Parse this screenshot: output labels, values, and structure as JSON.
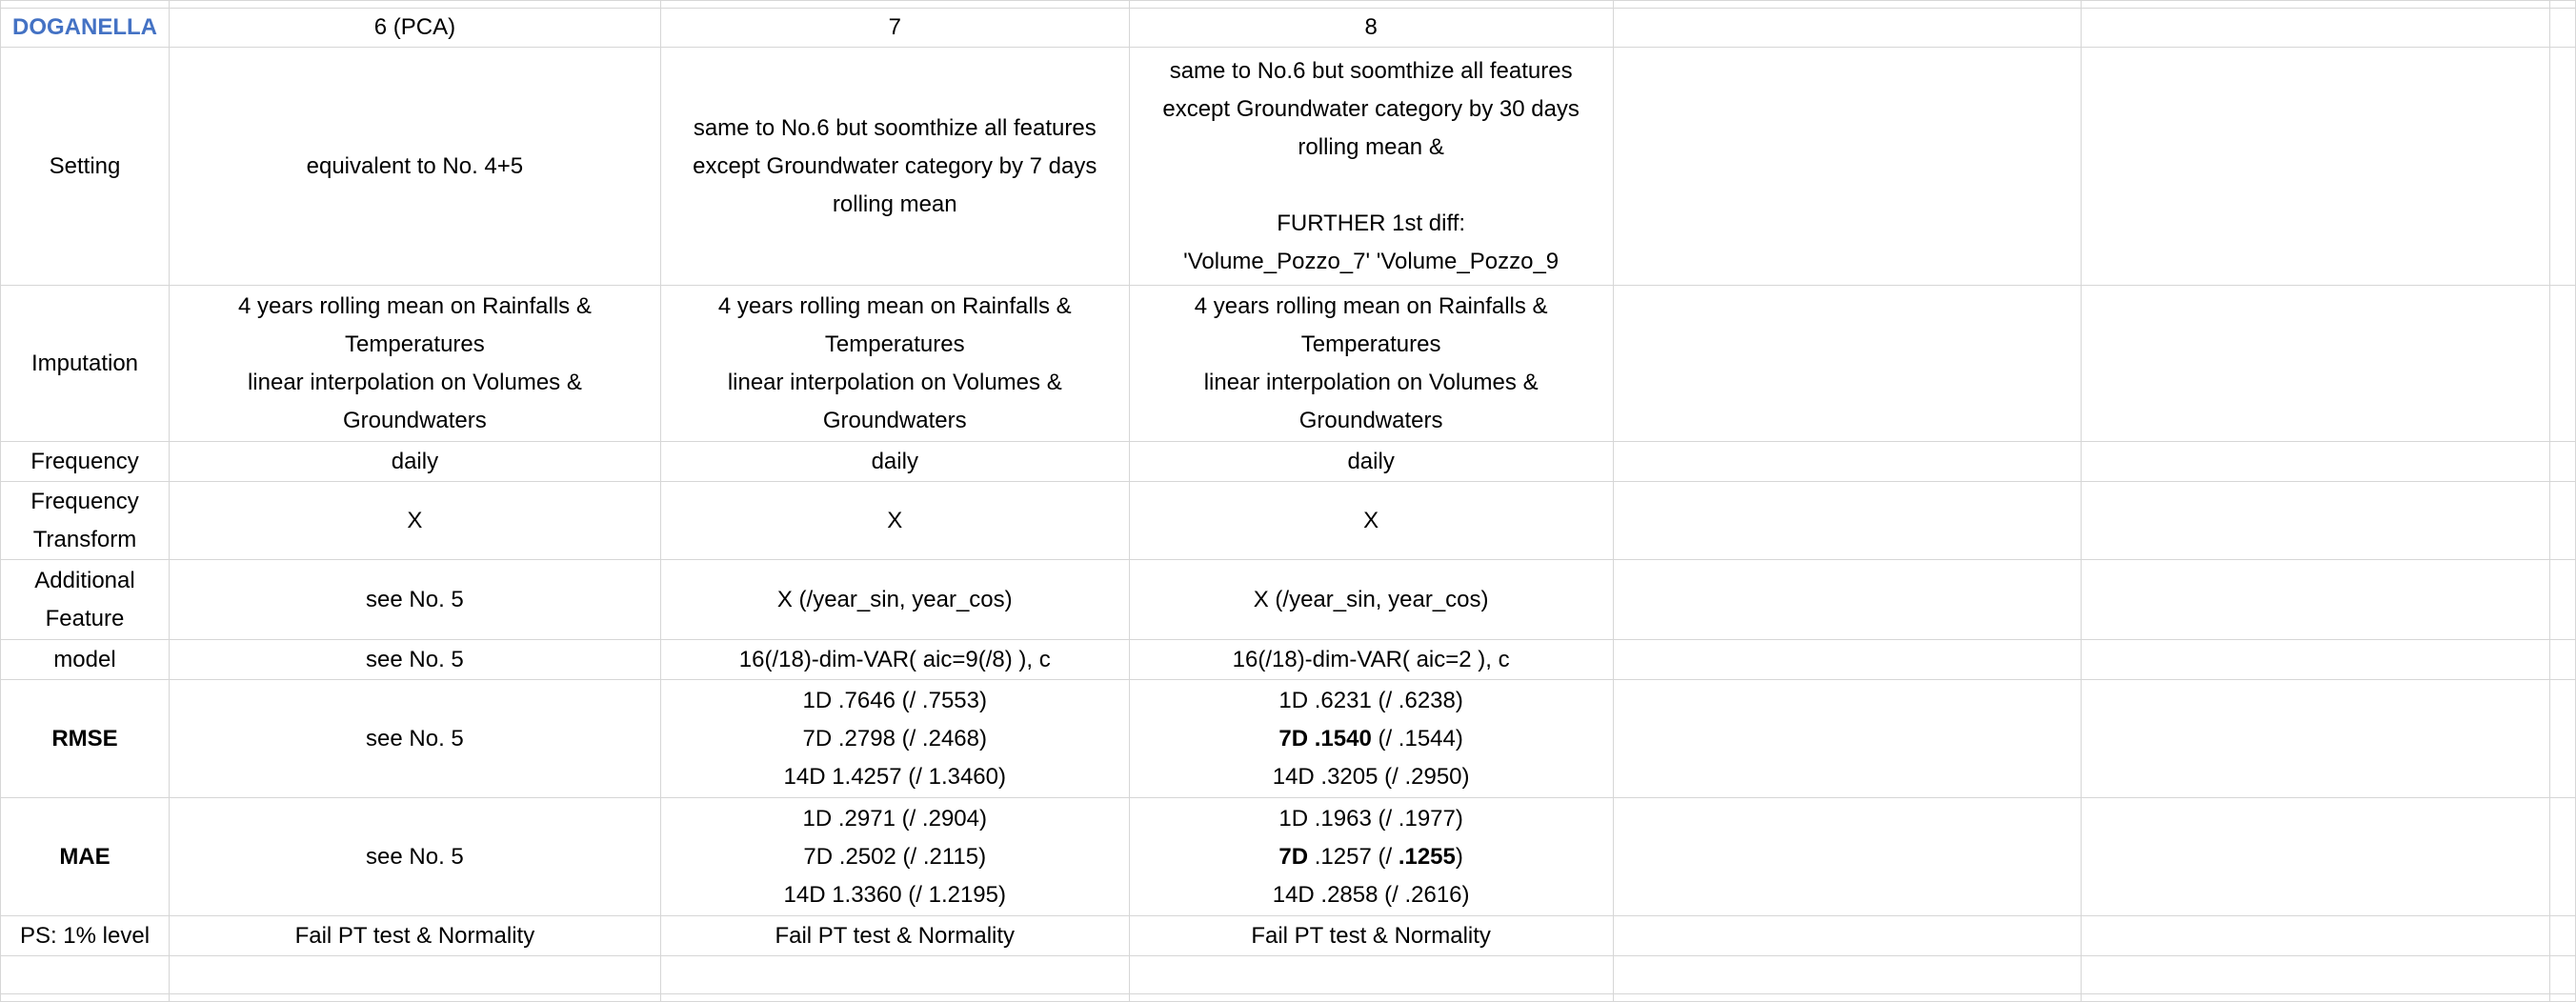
{
  "sheet": {
    "title": "DOGANELLA",
    "columns": [
      "6 (PCA)",
      "7",
      "8"
    ],
    "rows": {
      "setting": {
        "label": "Setting",
        "c6": "equivalent to No. 4+5",
        "c7": [
          "same to No.6 but soomthize all features",
          "except Groundwater category by 7 days",
          "rolling mean"
        ],
        "c8": [
          "same to No.6 but soomthize all features",
          "except Groundwater category by 30 days",
          "rolling mean &",
          "",
          "FURTHER  1st diff:",
          "'Volume_Pozzo_7' 'Volume_Pozzo_9"
        ]
      },
      "imputation": {
        "label": "Imputation",
        "c6": [
          "4 years rolling mean on Rainfalls &",
          "Temperatures",
          "linear interpolation on Volumes &",
          "Groundwaters"
        ],
        "c7": [
          "4 years rolling mean on Rainfalls &",
          "Temperatures",
          "linear interpolation on Volumes &",
          "Groundwaters"
        ],
        "c8": [
          "4 years rolling mean on Rainfalls &",
          "Temperatures",
          "linear interpolation on Volumes &",
          "Groundwaters"
        ]
      },
      "frequency": {
        "label": "Frequency",
        "c6": "daily",
        "c7": "daily",
        "c8": "daily"
      },
      "frequency_transform": {
        "label": [
          "Frequency",
          "Transform"
        ],
        "c6": "X",
        "c7": "X",
        "c8": "X"
      },
      "additional_feature": {
        "label": [
          "Additional",
          "Feature"
        ],
        "c6": "see No. 5",
        "c7": "X (/year_sin, year_cos)",
        "c8": "X (/year_sin, year_cos)"
      },
      "model": {
        "label": "model",
        "c6": "see No. 5",
        "c7": "16(/18)-dim-VAR( aic=9(/8) ), c",
        "c8": "16(/18)-dim-VAR( aic=2 ), c"
      },
      "rmse": {
        "label": "RMSE",
        "c6": "see No. 5",
        "c7": [
          "1D .7646 (/ .7553)",
          "7D .2798 (/ .2468)",
          "14D 1.4257 (/ 1.3460)"
        ],
        "c8_1": "1D .6231 (/ .6238)",
        "c8_2_bold": "7D .1540",
        "c8_2_rest": " (/ .1544)",
        "c8_3": "14D .3205 (/ .2950)"
      },
      "mae": {
        "label": "MAE",
        "c6": "see No. 5",
        "c7": [
          "1D .2971 (/ .2904)",
          "7D .2502 (/ .2115)",
          "14D 1.3360 (/ 1.2195)"
        ],
        "c8_1": "1D .1963 (/ .1977)",
        "c8_2_bold": "7D",
        "c8_2_mid": " .1257 (/ ",
        "c8_2_bold2": ".1255",
        "c8_2_end": ")",
        "c8_3": "14D .2858 (/ .2616)"
      },
      "ps": {
        "label": "PS: 1% level",
        "c6": "Fail PT test & Normality",
        "c7": "Fail PT test & Normality",
        "c8": "Fail PT test & Normality"
      }
    }
  }
}
